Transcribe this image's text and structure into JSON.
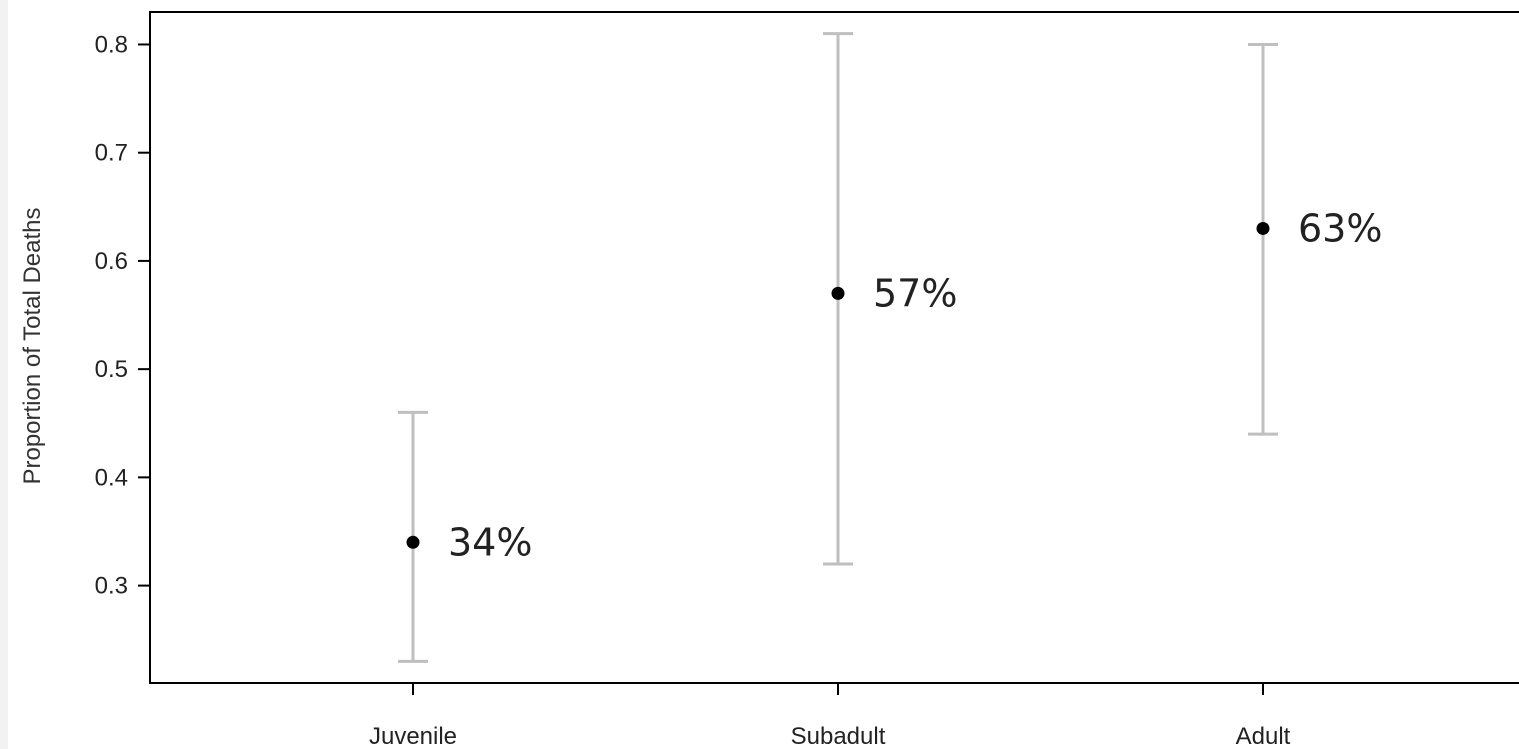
{
  "chart_data": {
    "type": "scatter",
    "title": "",
    "xlabel": "",
    "ylabel": "Proportion of Total Deaths",
    "categories": [
      "Juvenile",
      "Subadult",
      "Adult"
    ],
    "values": [
      0.34,
      0.57,
      0.63
    ],
    "lower": [
      0.23,
      0.32,
      0.44
    ],
    "upper": [
      0.46,
      0.81,
      0.8
    ],
    "data_labels": [
      "34%",
      "57%",
      "63%"
    ],
    "yticks": [
      "0.3",
      "0.4",
      "0.5",
      "0.6",
      "0.7",
      "0.8"
    ],
    "ytick_values": [
      0.3,
      0.4,
      0.5,
      0.6,
      0.7,
      0.8
    ],
    "ylim": [
      0.21,
      0.83
    ],
    "grid": false,
    "legend": "none",
    "colors": {
      "point": "#000000",
      "error_bar": "#bfbfbf",
      "axis": "#000000",
      "text": "#222222",
      "frame_margin": "#f2f2f2"
    }
  }
}
